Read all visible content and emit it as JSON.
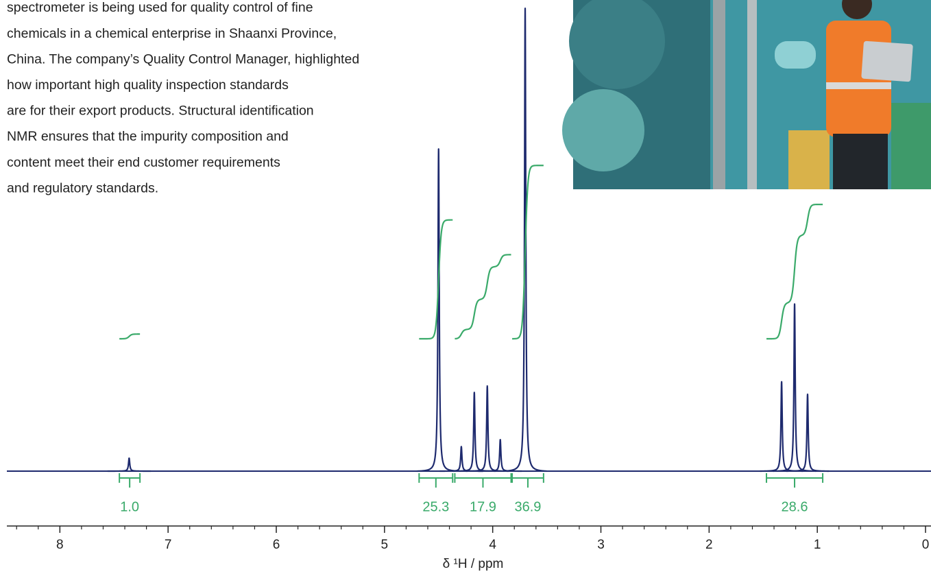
{
  "paragraph": [
    "spectrometer is being used for quality control of fine",
    "chemicals in a chemical enterprise in Shaanxi Province,",
    "China. The company’s Quality Control Manager, highlighted",
    "how important high quality inspection standards",
    "are for their export products. Structural identification",
    "NMR ensures that the impurity composition and",
    "content meet their end customer requirements",
    "and regulatory standards."
  ],
  "chart_data": {
    "type": "nmr",
    "xlabel": "δ ¹H / ppm",
    "xlim": [
      8.49,
      0
    ],
    "xticks": [
      8,
      7,
      6,
      5,
      4,
      3,
      2,
      1,
      0
    ],
    "xminorticks": [
      8.4,
      8.2,
      7.8,
      7.6,
      7.4,
      7.2,
      6.8,
      6.6,
      6.4,
      6.2,
      5.8,
      5.6,
      5.4,
      5.2,
      4.8,
      4.6,
      4.4,
      4.2,
      3.8,
      3.6,
      3.4,
      3.2,
      2.8,
      2.6,
      2.4,
      2.2,
      1.8,
      1.6,
      1.4,
      1.2,
      0.8,
      0.6,
      0.4,
      0.2
    ],
    "ylim": [
      0,
      101.8
    ],
    "color": "#1e2a6e",
    "peaks": {
      "x": [
        7.36,
        4.5,
        4.29,
        4.17,
        4.05,
        3.93,
        3.7,
        1.33,
        1.21,
        1.09
      ],
      "values": [
        2.8,
        69.6,
        5.3,
        17.0,
        18.4,
        6.8,
        100,
        19.3,
        36.1,
        16.6
      ]
    },
    "integrals": {
      "color": "#3aaa6a",
      "from": [
        7.45,
        4.68,
        4.35,
        3.82,
        1.47
      ],
      "to": [
        7.26,
        4.37,
        3.83,
        3.53,
        0.95
      ],
      "values": [
        1.0,
        25.3,
        17.9,
        36.9,
        28.6
      ],
      "value_labels": [
        "1.0",
        "25.3",
        "17.9",
        "36.9",
        "28.6"
      ]
    }
  }
}
